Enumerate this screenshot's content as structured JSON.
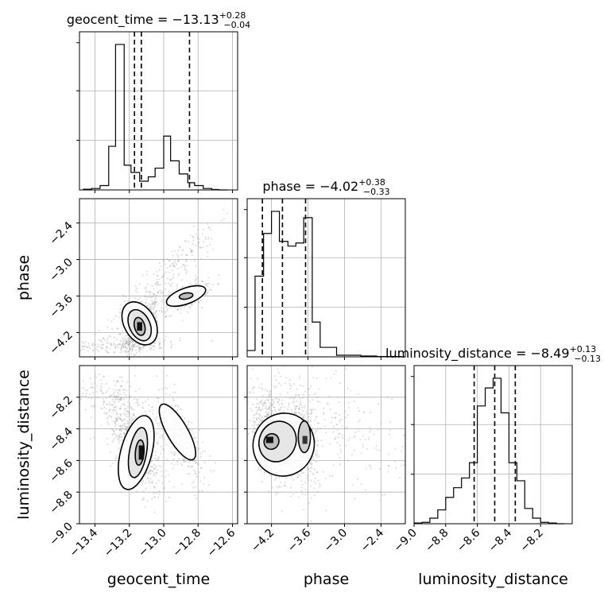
{
  "chart_data": {
    "type": "corner",
    "parameters": [
      "geocent_time",
      "phase",
      "luminosity_distance"
    ],
    "titles": [
      {
        "prefix": "geocent_time = −13.13",
        "upper": "+0.28",
        "lower": "−0.04"
      },
      {
        "prefix": "phase = −4.02",
        "upper": "+0.38",
        "lower": "−0.33"
      },
      {
        "prefix": "luminosity_distance = −8.49",
        "upper": "+0.13",
        "lower": "−0.13"
      }
    ],
    "axis_labels": {
      "x": [
        "geocent_time",
        "phase",
        "luminosity_distance"
      ],
      "y": [
        "phase",
        "luminosity_distance"
      ]
    },
    "ranges": {
      "geocent_time": [
        -13.49,
        -12.57
      ],
      "phase": [
        -4.6,
        -2.0
      ],
      "luminosity_distance": [
        -9.0,
        -8.0
      ]
    },
    "ticks": {
      "geocent_time": [
        "−13.4",
        "−13.2",
        "−13.0",
        "−12.8",
        "−12.6"
      ],
      "geocent_time_values": [
        -13.4,
        -13.2,
        -13.0,
        -12.8,
        -12.6
      ],
      "phase": [
        "−4.2",
        "−3.6",
        "−3.0",
        "−2.4"
      ],
      "phase_values": [
        -4.2,
        -3.6,
        -3.0,
        -2.4
      ],
      "luminosity_distance": [
        "−9.0",
        "−8.8",
        "−8.6",
        "−8.4",
        "−8.2"
      ],
      "luminosity_distance_values": [
        -9.0,
        -8.8,
        -8.6,
        -8.4,
        -8.2
      ]
    },
    "quantiles": {
      "geocent_time": [
        -13.17,
        -13.13,
        -12.85
      ],
      "phase": [
        -4.35,
        -4.02,
        -3.64
      ],
      "luminosity_distance": [
        -8.62,
        -8.49,
        -8.36
      ]
    },
    "histograms": {
      "geocent_time": {
        "edges": [
          -13.47,
          -13.42,
          -13.37,
          -13.32,
          -13.28,
          -13.23,
          -13.19,
          -13.14,
          -13.09,
          -13.05,
          -13.0,
          -12.96,
          -12.91,
          -12.86,
          -12.82,
          -12.77,
          -12.72,
          -12.68,
          -12.63
        ],
        "counts": [
          0.5,
          1.0,
          3.0,
          30.0,
          100.0,
          17.0,
          12.0,
          6.0,
          9.0,
          15.0,
          37.0,
          20.0,
          11.0,
          5.0,
          3.0,
          1.0,
          0.3,
          0.0
        ]
      },
      "phase": {
        "edges": [
          -4.6,
          -4.47,
          -4.33,
          -4.2,
          -4.07,
          -3.93,
          -3.8,
          -3.67,
          -3.53,
          -3.4,
          -3.27,
          -3.13,
          -3.0,
          -2.87,
          -2.73,
          -2.6,
          -2.47,
          -2.33,
          -2.2,
          -2.07,
          -2.0
        ],
        "counts": [
          4.0,
          51.0,
          78.0,
          92.0,
          73.0,
          70.0,
          72.0,
          88.0,
          22.0,
          6.0,
          6.0,
          1.0,
          1.0,
          1.0,
          0.5,
          0.5,
          0.2,
          0.2,
          0.2,
          0.0
        ]
      },
      "luminosity_distance": {
        "edges": [
          -9.0,
          -8.95,
          -8.9,
          -8.85,
          -8.8,
          -8.75,
          -8.7,
          -8.65,
          -8.6,
          -8.55,
          -8.5,
          -8.45,
          -8.4,
          -8.35,
          -8.3,
          -8.25,
          -8.2,
          -8.15,
          -8.1,
          -8.05
        ],
        "counts": [
          0.5,
          1.0,
          4.0,
          10.0,
          19.0,
          26.0,
          33.0,
          44.0,
          85.0,
          98.0,
          105.0,
          80.0,
          44.0,
          31.0,
          11.0,
          4.0,
          1.0,
          0.5,
          0.0
        ]
      }
    },
    "grid": true
  }
}
